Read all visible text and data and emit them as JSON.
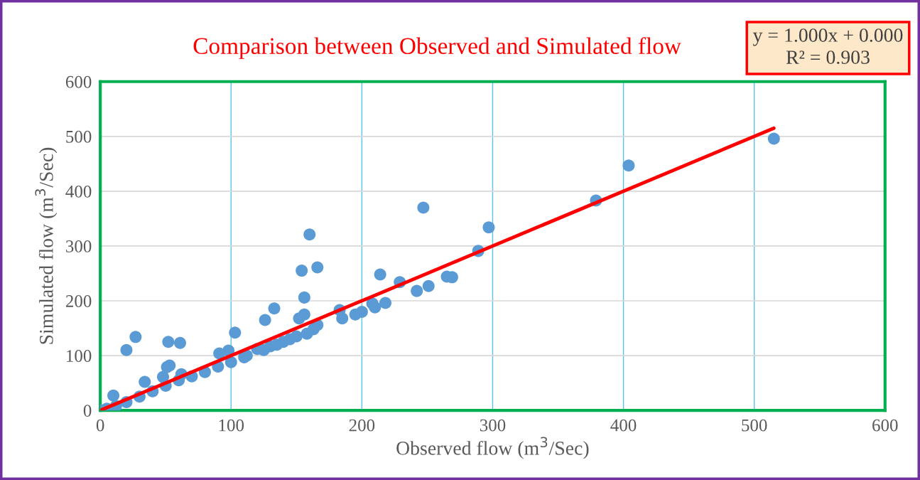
{
  "chart_data": {
    "type": "scatter",
    "title": "Comparison between Observed and Simulated flow",
    "xlabel": "Observed flow (m$^{3}$/Sec)",
    "ylabel": "Simulated flow (m$^{3}$/Sec)",
    "annotations": [
      "y = 1.000x + 0.000\nR² = 0.903"
    ],
    "xlim": [
      0,
      600
    ],
    "ylim": [
      0,
      600
    ],
    "xticks": [
      0,
      100,
      200,
      300,
      400,
      500,
      600
    ],
    "yticks": [
      0,
      100,
      200,
      300,
      400,
      500,
      600
    ],
    "grid": true,
    "marker": "circle",
    "series": [
      {
        "color": "#5b9bd5",
        "x": [
          1,
          5,
          10,
          12,
          20,
          27,
          20,
          30,
          34,
          40,
          48,
          50,
          51,
          53,
          52,
          60,
          61,
          62,
          70,
          80,
          90,
          91,
          98,
          100,
          103,
          110,
          112,
          120,
          125,
          126,
          130,
          133,
          135,
          140,
          145,
          150,
          152,
          154,
          156,
          156,
          158,
          160,
          163,
          166,
          166,
          183,
          185,
          195,
          200,
          208,
          210,
          214,
          218,
          229,
          242,
          247,
          251,
          265,
          269,
          289,
          297,
          379,
          404,
          515
        ],
        "values": [
          0,
          3,
          27,
          8,
          110,
          134,
          15,
          25,
          52,
          35,
          61,
          45,
          79,
          82,
          125,
          55,
          123,
          66,
          62,
          70,
          80,
          104,
          109,
          88,
          142,
          97,
          100,
          112,
          110,
          165,
          117,
          186,
          120,
          125,
          130,
          135,
          168,
          255,
          206,
          175,
          140,
          321,
          148,
          261,
          156,
          183,
          168,
          175,
          180,
          195,
          188,
          248,
          196,
          234,
          218,
          370,
          227,
          244,
          243,
          291,
          334,
          383,
          447,
          496
        ]
      },
      {
        "type": "line",
        "color": "#ff0000",
        "line_style": "solid",
        "marker": "none",
        "x": [
          1,
          515
        ],
        "values": [
          1,
          515
        ]
      }
    ]
  }
}
